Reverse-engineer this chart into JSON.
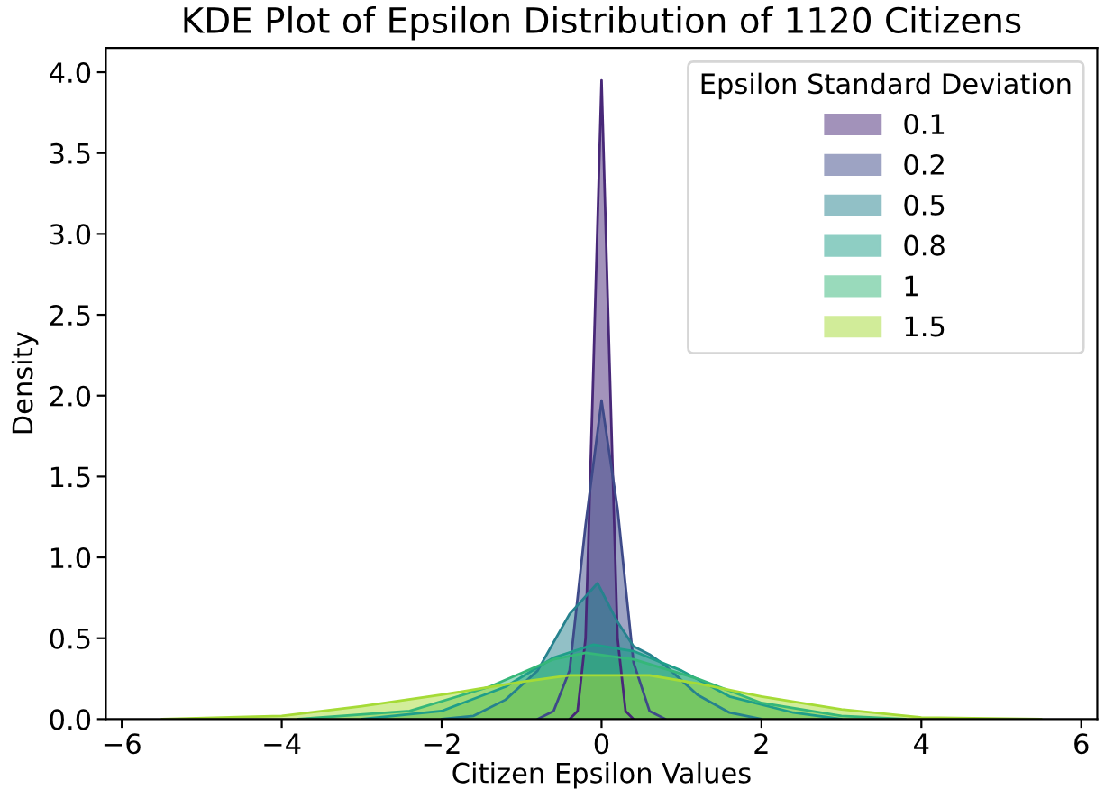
{
  "chart_data": {
    "type": "area",
    "title": "KDE Plot of Epsilon Distribution of 1120 Citizens",
    "xlabel": "Citizen Epsilon Values",
    "ylabel": "Density",
    "legend_title": "Epsilon Standard Deviation",
    "xlim": [
      -6.2,
      6.2
    ],
    "xticks": [
      {
        "value": -6,
        "label": "−6"
      },
      {
        "value": -4,
        "label": "−4"
      },
      {
        "value": -2,
        "label": "−2"
      },
      0,
      2,
      4,
      6
    ],
    "ylim": [
      0,
      4.15
    ],
    "yticks": [
      {
        "value": 0,
        "label": "0.0"
      },
      0.5,
      {
        "value": 1,
        "label": "1.0"
      },
      1.5,
      {
        "value": 2,
        "label": "2.0"
      },
      2.5,
      {
        "value": 3,
        "label": "3.0"
      },
      3.5,
      {
        "value": 4,
        "label": "4.0"
      }
    ],
    "grid": false,
    "legend": "top right",
    "series": [
      {
        "name": "0.1",
        "color": "#482878",
        "x": [
          -0.4,
          -0.3,
          -0.2,
          -0.1,
          0,
          0.1,
          0.2,
          0.3,
          0.4
        ],
        "values": [
          0,
          0.05,
          0.5,
          2.2,
          3.95,
          2.2,
          0.5,
          0.05,
          0
        ]
      },
      {
        "name": "0.2",
        "color": "#3e4a89",
        "x": [
          -0.8,
          -0.6,
          -0.4,
          -0.2,
          0,
          0.2,
          0.4,
          0.6,
          0.8
        ],
        "values": [
          0,
          0.05,
          0.3,
          1.2,
          1.97,
          1.3,
          0.35,
          0.05,
          0
        ]
      },
      {
        "name": "0.5",
        "color": "#26828e",
        "x": [
          -2,
          -1.6,
          -1.2,
          -0.8,
          -0.4,
          -0.05,
          0.2,
          0.4,
          0.6,
          0.8,
          1.2,
          1.6,
          2
        ],
        "values": [
          0,
          0.02,
          0.12,
          0.3,
          0.65,
          0.84,
          0.6,
          0.45,
          0.4,
          0.33,
          0.15,
          0.04,
          0
        ]
      },
      {
        "name": "0.8",
        "color": "#1f9e89",
        "x": [
          -3,
          -2,
          -1.2,
          -0.6,
          -0.1,
          0.4,
          1,
          1.6,
          2.4,
          3
        ],
        "values": [
          0,
          0.05,
          0.2,
          0.38,
          0.46,
          0.42,
          0.3,
          0.14,
          0.04,
          0
        ]
      },
      {
        "name": "1",
        "color": "#35b779",
        "x": [
          -3.8,
          -2.4,
          -1.4,
          -0.6,
          -0.2,
          0.4,
          1.2,
          2,
          3,
          3.8
        ],
        "values": [
          0,
          0.05,
          0.2,
          0.37,
          0.41,
          0.37,
          0.25,
          0.1,
          0.02,
          0
        ]
      },
      {
        "name": "1.5",
        "color": "#a5db36",
        "x": [
          -5.5,
          -4,
          -3,
          -2,
          -1,
          -0.4,
          0.6,
          1.2,
          2,
          3,
          4,
          5.5
        ],
        "values": [
          0,
          0.02,
          0.08,
          0.15,
          0.23,
          0.27,
          0.27,
          0.22,
          0.14,
          0.06,
          0.01,
          0
        ]
      }
    ]
  }
}
